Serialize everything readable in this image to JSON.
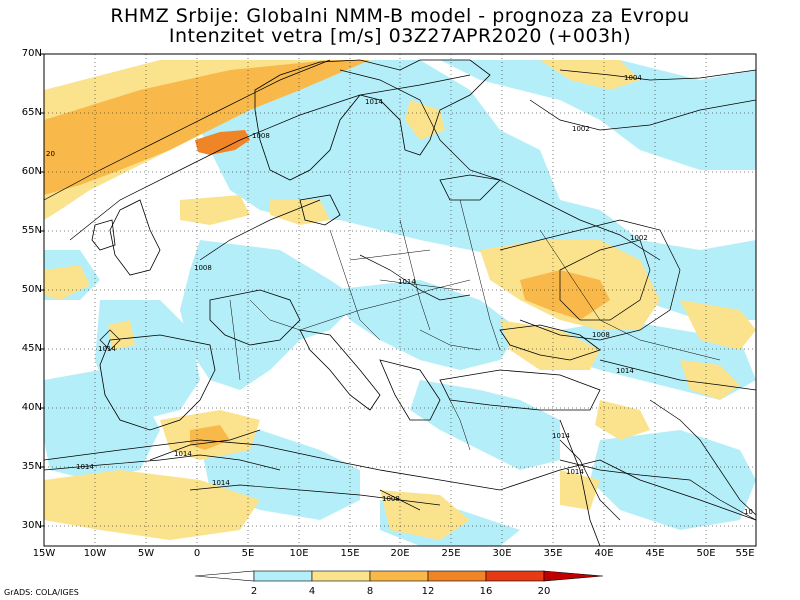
{
  "title": {
    "line1": "RHMZ Srbije: Globalni NMM-B model - prognoza za Evropu",
    "line2": "Intenzitet vetra [m/s] 03Z27APR2020 (+003h)"
  },
  "axes": {
    "lat_labels": [
      "70N",
      "65N",
      "60N",
      "55N",
      "50N",
      "45N",
      "40N",
      "35N",
      "30N"
    ],
    "lon_labels": [
      "15W",
      "10W",
      "5W",
      "0",
      "5E",
      "10E",
      "15E",
      "20E",
      "25E",
      "30E",
      "35E",
      "40E",
      "45E",
      "50E",
      "55E"
    ]
  },
  "isobars": {
    "l1014a": "1014",
    "l1008a": "1008",
    "l1020": "20",
    "l1008b": "1008",
    "l1004": "1004",
    "l1002a": "1002",
    "l1002b": "1002",
    "l1014b": "1014",
    "l1008c": "1008",
    "l1014c": "1014",
    "l1014d": "1014",
    "l1008d": "1008",
    "l1014e": "1014",
    "l1014f": "1014",
    "l1014g": "1014",
    "l1014h": "1014",
    "l1008e": "1008",
    "l1014i": "1014",
    "l1010": "10"
  },
  "colorbar": {
    "ticks": [
      "2",
      "4",
      "8",
      "12",
      "16",
      "20"
    ],
    "colors": [
      "#ffffff",
      "#b4eef8",
      "#fbe38d",
      "#f8b94a",
      "#f08528",
      "#e53a14",
      "#c00000"
    ]
  },
  "credit": "GrADS: COLA/IGES",
  "colors": {
    "ocean_calm": "#ffffff",
    "wind_2_4": "#b4eef8",
    "wind_4_8": "#fbe38d",
    "wind_8_12": "#f8b94a",
    "wind_12_16": "#f08528",
    "wind_16_20": "#e53a14"
  }
}
